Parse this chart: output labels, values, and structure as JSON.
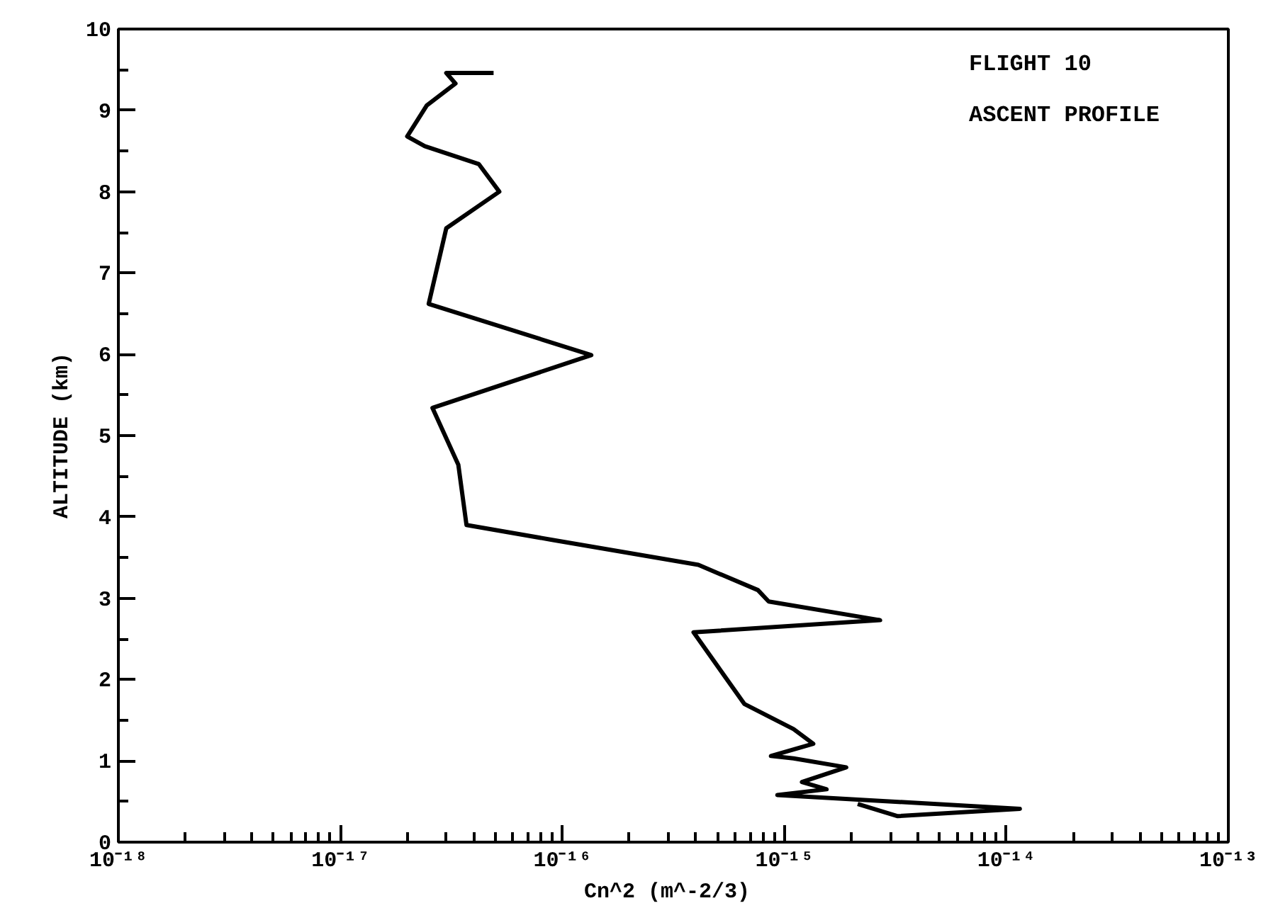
{
  "chart_data": {
    "type": "line",
    "xlabel": "Cn^2  (m^-2/3)",
    "ylabel": "ALTITUDE (km)",
    "annotations": [
      "FLIGHT 10",
      "ASCENT PROFILE"
    ],
    "x": [
      2.14e-15,
      3.24e-15,
      1.15e-14,
      9.3e-16,
      1.55e-15,
      1.2e-15,
      1.9e-15,
      1.1e-15,
      8.7e-16,
      1.35e-15,
      1.1e-15,
      6.6e-16,
      3.9e-16,
      2.7e-15,
      8.5e-16,
      7.6e-16,
      4.1e-16,
      8.9e-17,
      3.7e-17,
      3.4e-17,
      2.6e-17,
      1.35e-16,
      2.5e-17,
      3e-17,
      5.2e-17,
      4.2e-17,
      2.4e-17,
      2e-17,
      2.45e-17,
      3.3e-17,
      3e-17,
      4.9e-17
    ],
    "values": [
      0.47,
      0.32,
      0.41,
      0.58,
      0.65,
      0.74,
      0.92,
      1.03,
      1.06,
      1.21,
      1.39,
      1.7,
      2.58,
      2.73,
      2.96,
      3.1,
      3.41,
      3.72,
      3.9,
      4.64,
      5.34,
      5.99,
      6.62,
      7.55,
      8.0,
      8.34,
      8.56,
      8.68,
      9.06,
      9.33,
      9.46,
      9.46
    ],
    "color": "#000000",
    "log": "x",
    "line_style": "solid",
    "grid": false,
    "xlim": [
      1e-18,
      1e-13
    ],
    "xticks": [
      {
        "value": 1e-18,
        "label": "10⁻¹⁸"
      },
      {
        "value": 1e-17,
        "label": "10⁻¹⁷"
      },
      {
        "value": 1e-16,
        "label": "10⁻¹⁶"
      },
      {
        "value": 1e-15,
        "label": "10⁻¹⁵"
      },
      {
        "value": 1e-14,
        "label": "10⁻¹⁴"
      },
      {
        "value": 1e-13,
        "label": "10⁻¹³"
      }
    ],
    "ylim": [
      0,
      10
    ],
    "yticks": [
      0,
      1,
      2,
      3,
      4,
      5,
      6,
      7,
      8,
      9,
      10
    ]
  }
}
